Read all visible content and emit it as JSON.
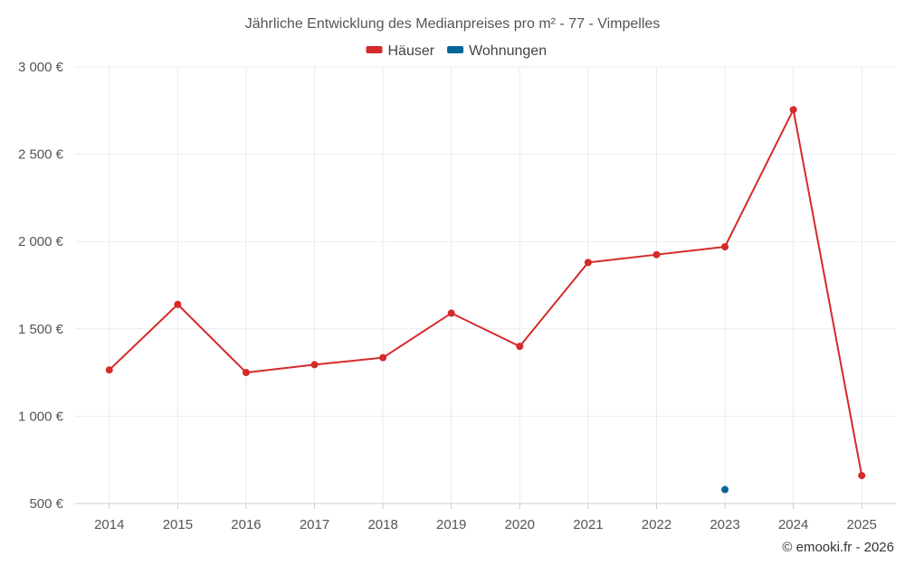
{
  "chart_data": {
    "type": "line",
    "title": "Jährliche Entwicklung des Medianpreises pro m² - 77 - Vimpelles",
    "x": [
      "2014",
      "2015",
      "2016",
      "2017",
      "2018",
      "2019",
      "2020",
      "2021",
      "2022",
      "2023",
      "2024",
      "2025"
    ],
    "ylim": [
      500,
      3000
    ],
    "y_ticks": [
      500,
      1000,
      1500,
      2000,
      2500,
      3000
    ],
    "y_tick_labels": [
      "500 €",
      "1 000 €",
      "1 500 €",
      "2 000 €",
      "2 500 €",
      "3 000 €"
    ],
    "grid": true,
    "legend_position": "top-center",
    "series": [
      {
        "name": "Häuser",
        "color": "#d42a2a",
        "values": [
          1265,
          1640,
          1250,
          1295,
          1335,
          1590,
          1400,
          1880,
          1925,
          1970,
          2755,
          660
        ]
      },
      {
        "name": "Wohnungen",
        "color": "#006699",
        "values": [
          null,
          null,
          null,
          null,
          null,
          null,
          null,
          null,
          null,
          580,
          null,
          null
        ]
      }
    ]
  },
  "credit": "© emooki.fr - 2026"
}
